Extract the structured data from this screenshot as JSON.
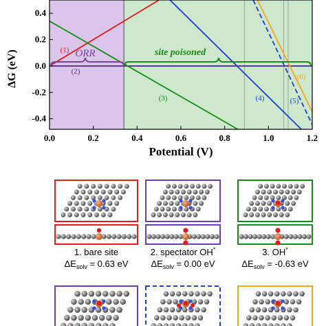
{
  "chart_data": {
    "type": "line",
    "xlabel": "Potential (V)",
    "ylabel": "ΔG (eV)",
    "xlim": [
      0.0,
      1.2
    ],
    "ylim": [
      -0.48,
      0.5
    ],
    "xticks": [
      0.0,
      0.2,
      0.4,
      0.6,
      0.8,
      1.0,
      1.2
    ],
    "xtick_labels": [
      "0.0",
      "0.2",
      "0.4",
      "0.6",
      "0.8",
      "1.0",
      "1.2"
    ],
    "yticks": [
      -0.4,
      -0.2,
      0.0,
      0.2,
      0.4
    ],
    "ytick_labels": [
      "-0.4",
      "-0.2",
      "0.0",
      "0.2",
      "0.4"
    ],
    "regions": [
      {
        "label": "ORR",
        "x": [
          0.0,
          0.34
        ],
        "color": "#d9c6ea"
      },
      {
        "label": "site poisoned",
        "x": [
          0.34,
          1.2
        ],
        "color": "#cde8cd"
      }
    ],
    "vertical_lines": [
      0.34,
      0.89,
      1.07,
      1.09
    ],
    "series": [
      {
        "name": "(1)",
        "color": "#e41a1c",
        "dash": "solid",
        "x": [
          0.0,
          0.5
        ],
        "y": [
          0.0,
          0.5
        ]
      },
      {
        "name": "(2)",
        "color": "#5a2d91",
        "dash": "solid",
        "x": [
          0.0,
          1.2
        ],
        "y": [
          0.0,
          0.0
        ]
      },
      {
        "name": "(3)",
        "color": "#1a8a1a",
        "dash": "solid",
        "x": [
          0.0,
          0.86
        ],
        "y": [
          0.34,
          -0.48
        ]
      },
      {
        "name": "(4)",
        "color": "#1f3fd6",
        "dash": "solid",
        "x": [
          0.55,
          1.15
        ],
        "y": [
          0.5,
          -0.48
        ]
      },
      {
        "name": "(5)",
        "color": "#1f3fd6",
        "dash": "dashed",
        "x": [
          0.93,
          1.21
        ],
        "y": [
          0.5,
          -0.48
        ]
      },
      {
        "name": "(6)",
        "color": "#f5a623",
        "dash": "solid",
        "x": [
          0.95,
          1.21
        ],
        "y": [
          0.5,
          -0.38
        ]
      }
    ],
    "annotations": [
      {
        "text": "ORR",
        "color": "#7b3fa8"
      },
      {
        "text": "site poisoned",
        "color": "#1a8a1a"
      }
    ]
  },
  "structures": [
    {
      "id": 1,
      "caption": "1. bare site",
      "energy": "ΔE",
      "sub": "solv",
      "value": " = 0.63 eV",
      "border": "#e41a1c",
      "dash": false
    },
    {
      "id": 2,
      "caption": "2. spectator OH",
      "caption_sup": "*",
      "energy": "ΔE",
      "sub": "solv",
      "value": " = 0.00 eV",
      "border": "#6a3fb0",
      "dash": false
    },
    {
      "id": 3,
      "caption": "3. OH",
      "caption_sup": "*",
      "energy": "ΔE",
      "sub": "solv",
      "value": " = -0.63 eV",
      "border": "#1a8a1a",
      "dash": false
    },
    {
      "id": 4,
      "border": "#6a3fb0",
      "dash": false
    },
    {
      "id": 5,
      "border": "#1f3fd6",
      "dash": true
    },
    {
      "id": 6,
      "border": "#f5a623",
      "dash": false
    }
  ]
}
